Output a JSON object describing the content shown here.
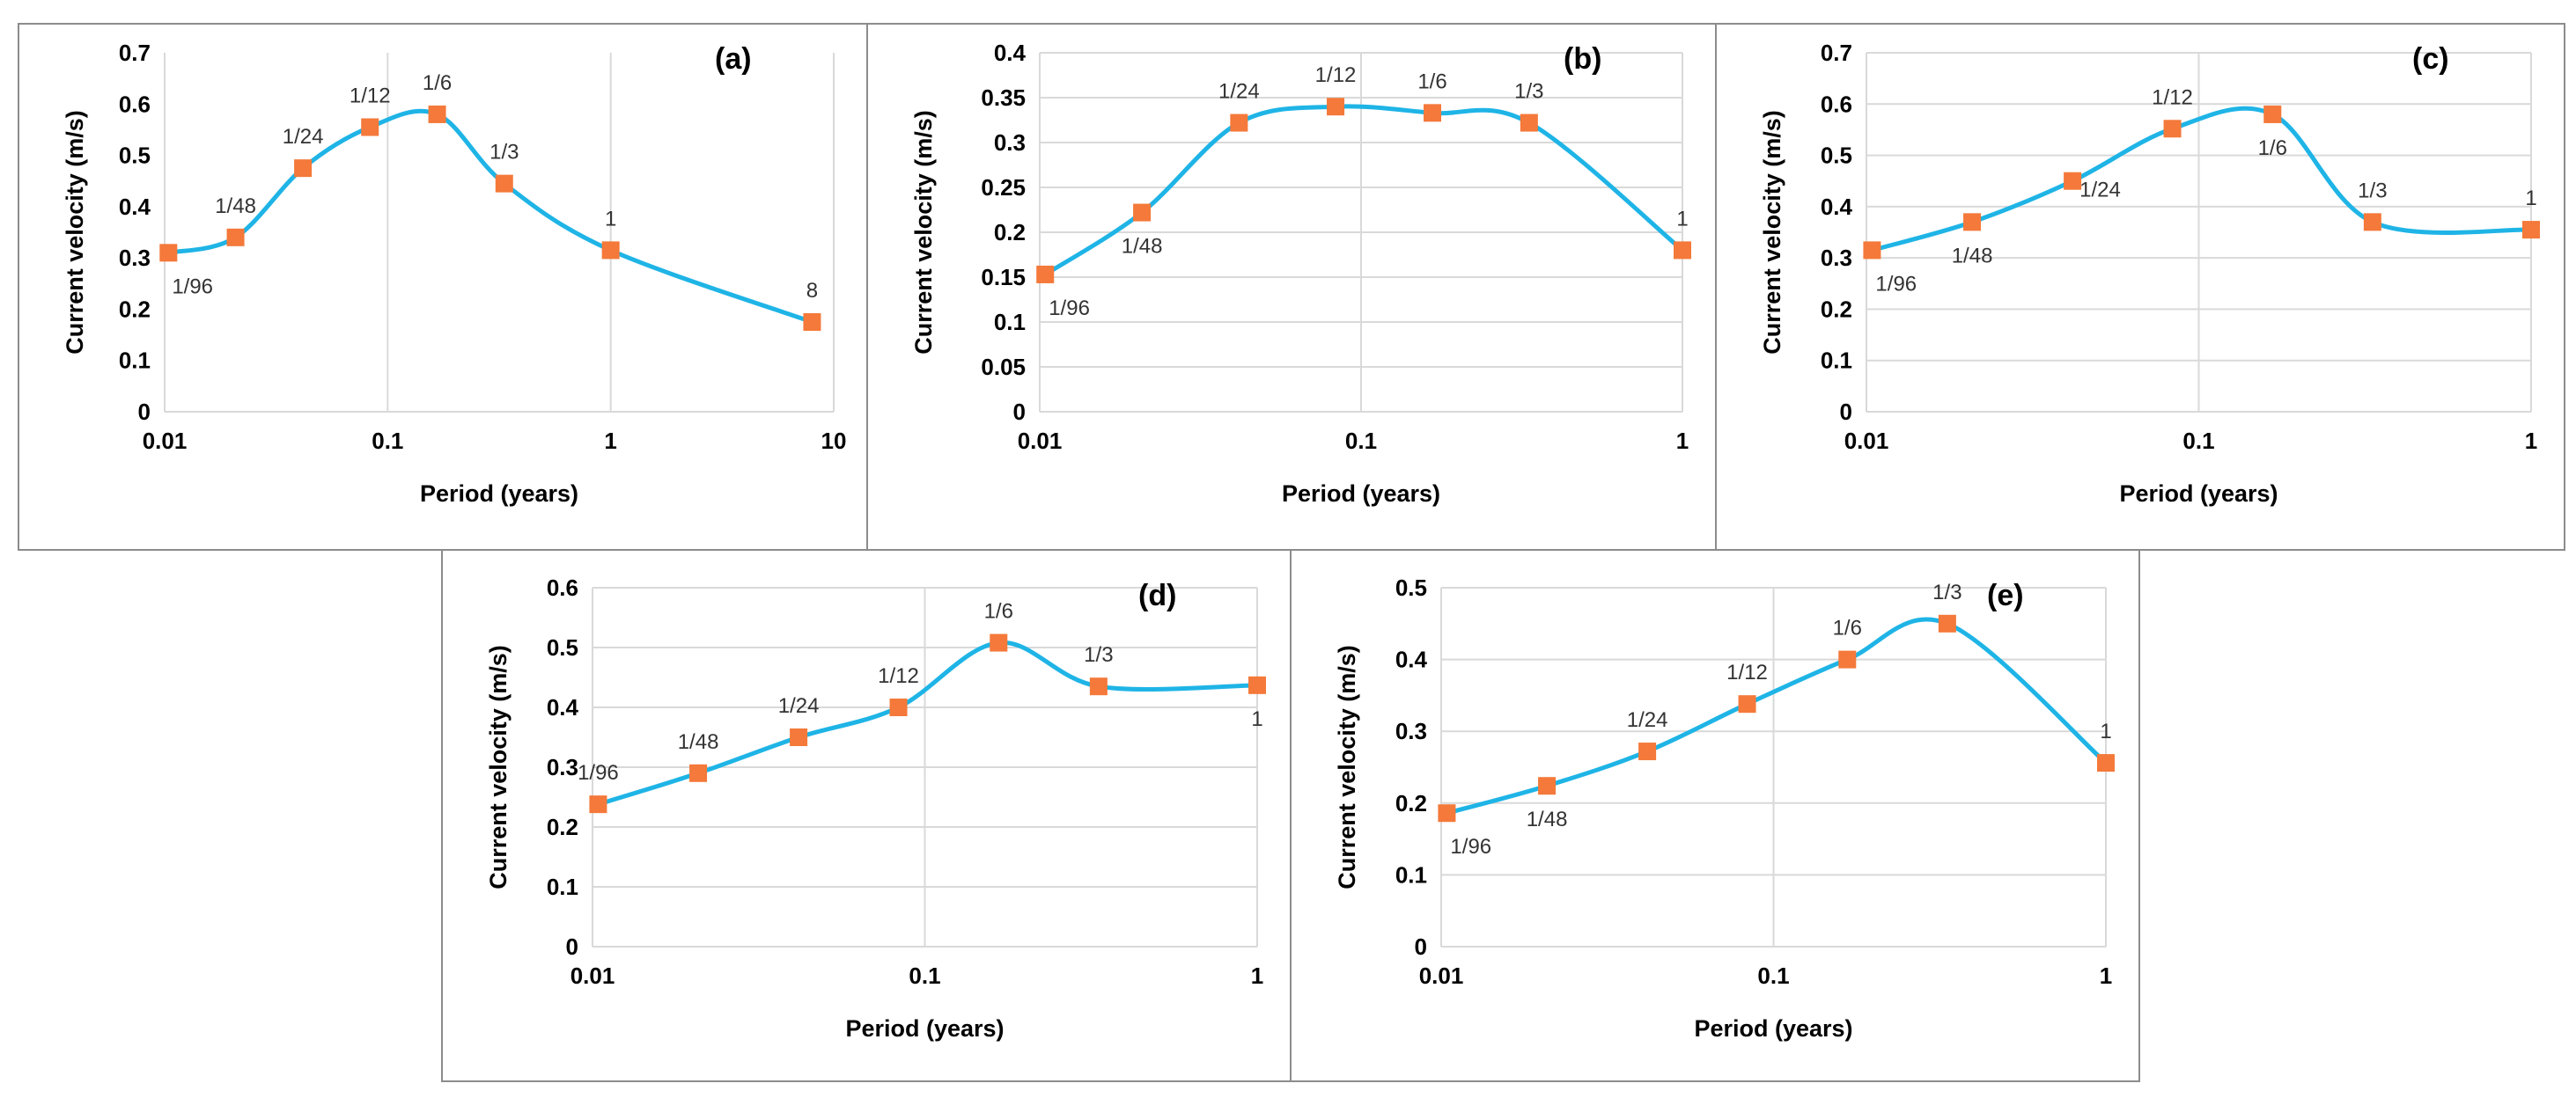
{
  "colors": {
    "line": "#1fb4e6",
    "marker": "#f4793a",
    "grid": "#d9d9d9",
    "border": "#8c8c8c"
  },
  "chart_data": [
    {
      "type": "line",
      "panel": "(a)",
      "xlabel": "Period (years)",
      "ylabel": "Current velocity (m/s)",
      "x_scale": "log",
      "xlim": [
        0.01,
        10
      ],
      "ylim": [
        0,
        0.7
      ],
      "ystep": 0.1,
      "yticks": [
        "0",
        "0.1",
        "0.2",
        "0.3",
        "0.4",
        "0.5",
        "0.6",
        "0.7"
      ],
      "xticks": [
        {
          "v": 0.01,
          "label": "0.01"
        },
        {
          "v": 0.1,
          "label": "0.1"
        },
        {
          "v": 1,
          "label": "1"
        },
        {
          "v": 10,
          "label": "10"
        }
      ],
      "grid": "vertical",
      "points": [
        {
          "x": 0.0104,
          "y": 0.31,
          "label": "1/96",
          "pos": "below"
        },
        {
          "x": 0.0208,
          "y": 0.34,
          "label": "1/48",
          "pos": "above"
        },
        {
          "x": 0.0417,
          "y": 0.475,
          "label": "1/24",
          "pos": "above"
        },
        {
          "x": 0.0833,
          "y": 0.555,
          "label": "1/12",
          "pos": "above"
        },
        {
          "x": 0.1667,
          "y": 0.58,
          "label": "1/6",
          "pos": "above"
        },
        {
          "x": 0.3333,
          "y": 0.445,
          "label": "1/3",
          "pos": "above"
        },
        {
          "x": 1,
          "y": 0.315,
          "label": "1",
          "pos": "above"
        },
        {
          "x": 8,
          "y": 0.175,
          "label": "8",
          "pos": "above"
        }
      ]
    },
    {
      "type": "line",
      "panel": "(b)",
      "xlabel": "Period (years)",
      "ylabel": "Current velocity (m/s)",
      "x_scale": "log",
      "xlim": [
        0.01,
        1
      ],
      "ylim": [
        0,
        0.4
      ],
      "ystep": 0.05,
      "yticks": [
        "0",
        "0.05",
        "0.1",
        "0.15",
        "0.2",
        "0.25",
        "0.3",
        "0.35",
        "0.4"
      ],
      "xticks": [
        {
          "v": 0.01,
          "label": "0.01"
        },
        {
          "v": 0.1,
          "label": "0.1"
        },
        {
          "v": 1,
          "label": "1"
        }
      ],
      "grid": "both",
      "points": [
        {
          "x": 0.0104,
          "y": 0.153,
          "label": "1/96",
          "pos": "below"
        },
        {
          "x": 0.0208,
          "y": 0.222,
          "label": "1/48",
          "pos": "below"
        },
        {
          "x": 0.0417,
          "y": 0.322,
          "label": "1/24",
          "pos": "above"
        },
        {
          "x": 0.0833,
          "y": 0.34,
          "label": "1/12",
          "pos": "above"
        },
        {
          "x": 0.1667,
          "y": 0.333,
          "label": "1/6",
          "pos": "above"
        },
        {
          "x": 0.3333,
          "y": 0.322,
          "label": "1/3",
          "pos": "above"
        },
        {
          "x": 1,
          "y": 0.18,
          "label": "1",
          "pos": "above"
        }
      ]
    },
    {
      "type": "line",
      "panel": "(c)",
      "xlabel": "Period (years)",
      "ylabel": "Current velocity (m/s)",
      "x_scale": "log",
      "xlim": [
        0.01,
        1
      ],
      "ylim": [
        0,
        0.7
      ],
      "ystep": 0.1,
      "yticks": [
        "0",
        "0.1",
        "0.2",
        "0.3",
        "0.4",
        "0.5",
        "0.6",
        "0.7"
      ],
      "xticks": [
        {
          "v": 0.01,
          "label": "0.01"
        },
        {
          "v": 0.1,
          "label": "0.1"
        },
        {
          "v": 1,
          "label": "1"
        }
      ],
      "grid": "both",
      "points": [
        {
          "x": 0.0104,
          "y": 0.315,
          "label": "1/96",
          "pos": "below"
        },
        {
          "x": 0.0208,
          "y": 0.37,
          "label": "1/48",
          "pos": "below"
        },
        {
          "x": 0.0417,
          "y": 0.45,
          "label": "1/24",
          "pos": "right"
        },
        {
          "x": 0.0833,
          "y": 0.552,
          "label": "1/12",
          "pos": "above"
        },
        {
          "x": 0.1667,
          "y": 0.58,
          "label": "1/6",
          "pos": "below"
        },
        {
          "x": 0.3333,
          "y": 0.37,
          "label": "1/3",
          "pos": "above"
        },
        {
          "x": 1,
          "y": 0.355,
          "label": "1",
          "pos": "above"
        }
      ]
    },
    {
      "type": "line",
      "panel": "(d)",
      "xlabel": "Period (years)",
      "ylabel": "Current velocity (m/s)",
      "x_scale": "log",
      "xlim": [
        0.01,
        1
      ],
      "ylim": [
        0,
        0.6
      ],
      "ystep": 0.1,
      "yticks": [
        "0",
        "0.1",
        "0.2",
        "0.3",
        "0.4",
        "0.5",
        "0.6"
      ],
      "xticks": [
        {
          "v": 0.01,
          "label": "0.01"
        },
        {
          "v": 0.1,
          "label": "0.1"
        },
        {
          "v": 1,
          "label": "1"
        }
      ],
      "grid": "both",
      "points": [
        {
          "x": 0.0104,
          "y": 0.238,
          "label": "1/96",
          "pos": "above"
        },
        {
          "x": 0.0208,
          "y": 0.29,
          "label": "1/48",
          "pos": "above"
        },
        {
          "x": 0.0417,
          "y": 0.35,
          "label": "1/24",
          "pos": "above"
        },
        {
          "x": 0.0833,
          "y": 0.4,
          "label": "1/12",
          "pos": "above"
        },
        {
          "x": 0.1667,
          "y": 0.508,
          "label": "1/6",
          "pos": "above"
        },
        {
          "x": 0.3333,
          "y": 0.435,
          "label": "1/3",
          "pos": "above"
        },
        {
          "x": 1,
          "y": 0.437,
          "label": "1",
          "pos": "below"
        }
      ]
    },
    {
      "type": "line",
      "panel": "(e)",
      "xlabel": "Period (years)",
      "ylabel": "Current velocity (m/s)",
      "x_scale": "log",
      "xlim": [
        0.01,
        1
      ],
      "ylim": [
        0,
        0.5
      ],
      "ystep": 0.1,
      "yticks": [
        "0",
        "0.1",
        "0.2",
        "0.3",
        "0.4",
        "0.5"
      ],
      "xticks": [
        {
          "v": 0.01,
          "label": "0.01"
        },
        {
          "v": 0.1,
          "label": "0.1"
        },
        {
          "v": 1,
          "label": "1"
        }
      ],
      "grid": "both",
      "points": [
        {
          "x": 0.0104,
          "y": 0.186,
          "label": "1/96",
          "pos": "below"
        },
        {
          "x": 0.0208,
          "y": 0.224,
          "label": "1/48",
          "pos": "below"
        },
        {
          "x": 0.0417,
          "y": 0.272,
          "label": "1/24",
          "pos": "above"
        },
        {
          "x": 0.0833,
          "y": 0.338,
          "label": "1/12",
          "pos": "above"
        },
        {
          "x": 0.1667,
          "y": 0.4,
          "label": "1/6",
          "pos": "above"
        },
        {
          "x": 0.3333,
          "y": 0.45,
          "label": "1/3",
          "pos": "above"
        },
        {
          "x": 1,
          "y": 0.256,
          "label": "1",
          "pos": "above"
        }
      ]
    }
  ]
}
